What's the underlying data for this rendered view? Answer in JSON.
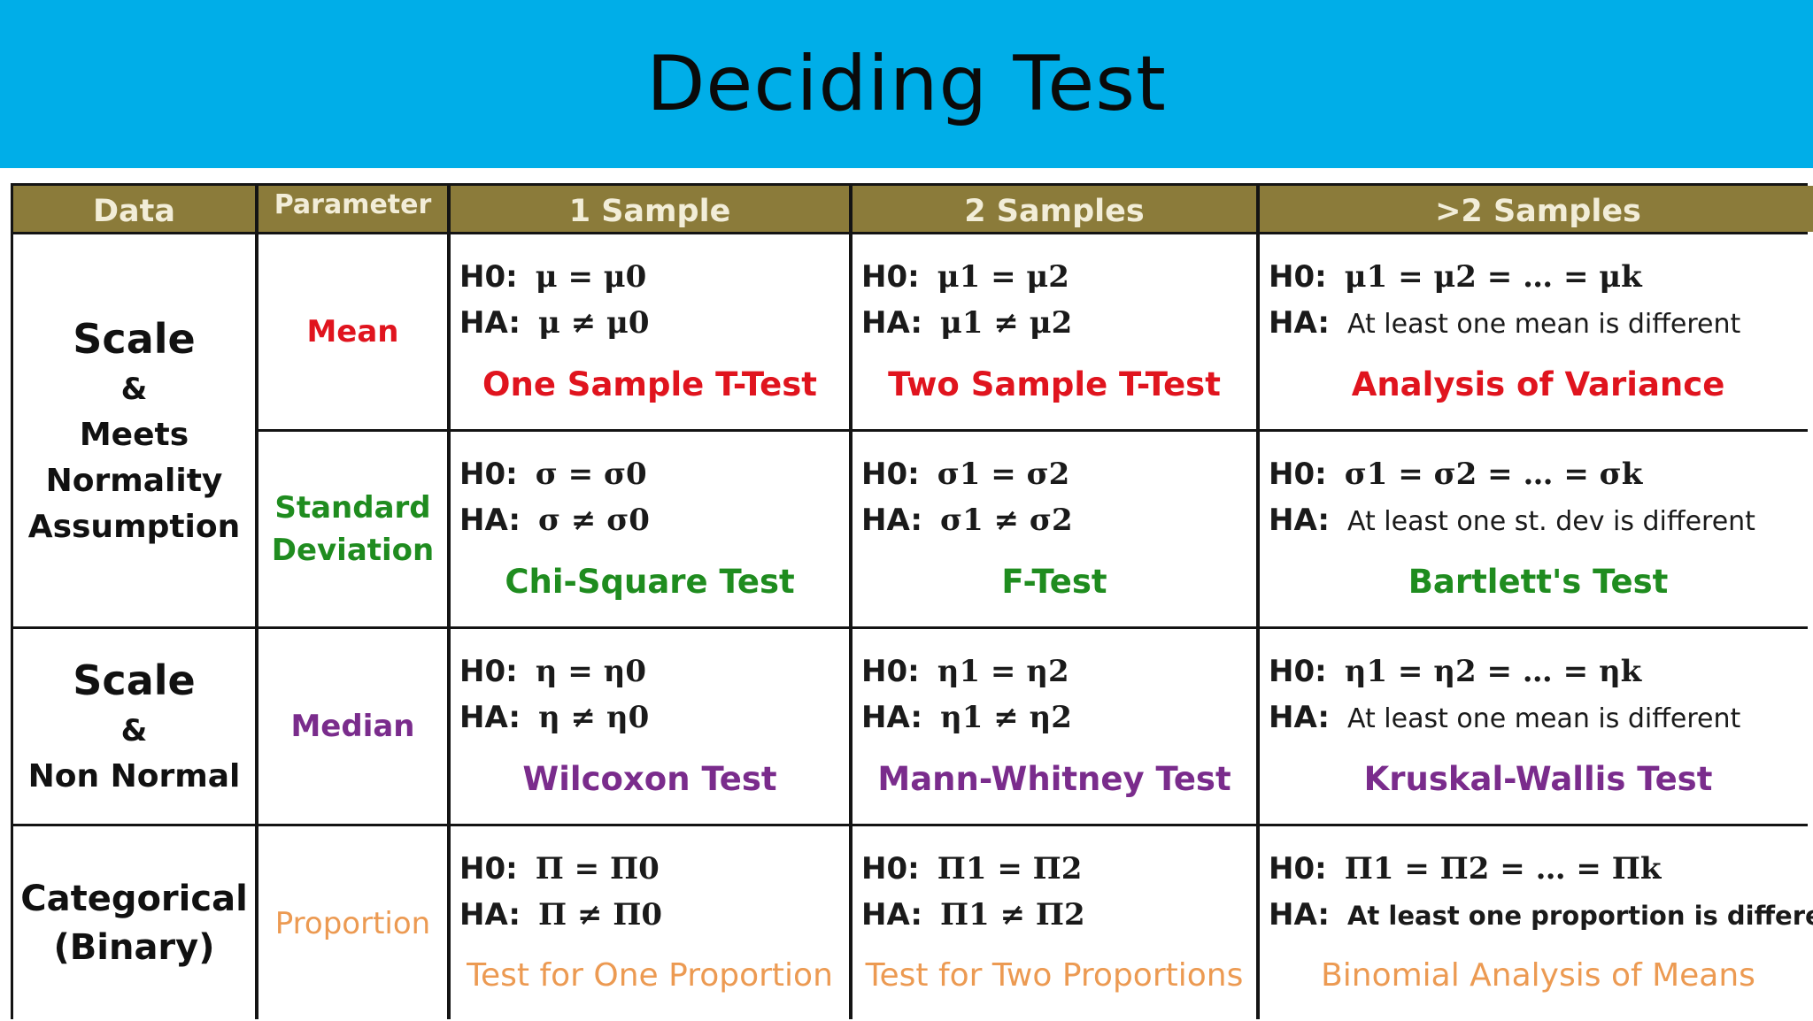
{
  "title": "Deciding Test",
  "headers": {
    "data": "Data",
    "parameter": "Parameter",
    "one_sample": "1 Sample",
    "two_samples": "2 Samples",
    "gt2_samples": ">2 Samples"
  },
  "data_groups": {
    "scale_normal": [
      "Scale",
      "&",
      "Meets",
      "Normality",
      "Assumption"
    ],
    "scale_nonnormal": [
      "Scale",
      "&",
      "Non Normal"
    ],
    "categorical": [
      "Categorical",
      "(Binary)"
    ]
  },
  "parameters": {
    "mean": "Mean",
    "std_dev": [
      "Standard",
      "Deviation"
    ],
    "median": "Median",
    "proportion": "Proportion"
  },
  "hyp_labels": {
    "h0": "H0:",
    "ha": "HA:"
  },
  "rows": {
    "mean": {
      "one": {
        "h0": "μ = μ0",
        "ha": "μ ≠ μ0",
        "test": "One Sample T-Test"
      },
      "two": {
        "h0": "μ1 = μ2",
        "ha": "μ1 ≠ μ2",
        "test": "Two Sample T-Test"
      },
      "many": {
        "h0": "μ1 = μ2 = … = μk",
        "ha": "At least one mean is different",
        "test": "Analysis of Variance"
      }
    },
    "std_dev": {
      "one": {
        "h0": "σ = σ0",
        "ha": "σ ≠ σ0",
        "test": "Chi-Square Test"
      },
      "two": {
        "h0": "σ1 = σ2",
        "ha": "σ1 ≠ σ2",
        "test": "F-Test"
      },
      "many": {
        "h0": "σ1 = σ2 = … = σk",
        "ha": "At least one st. dev is different",
        "test": "Bartlett's Test"
      }
    },
    "median": {
      "one": {
        "h0": "η = η0",
        "ha": "η ≠ η0",
        "test": "Wilcoxon Test"
      },
      "two": {
        "h0": "η1 = η2",
        "ha": "η1 ≠ η2",
        "test": "Mann-Whitney Test"
      },
      "many": {
        "h0": "η1 = η2 = … = ηk",
        "ha": "At least one mean is different",
        "test": "Kruskal-Wallis Test"
      }
    },
    "proportion": {
      "one": {
        "h0": "Π = Π0",
        "ha": "Π ≠ Π0",
        "test": "Test for One Proportion"
      },
      "two": {
        "h0": "Π1 = Π2",
        "ha": "Π1 ≠ Π2",
        "test": "Test for Two Proportions"
      },
      "many": {
        "h0": "Π1 = Π2 = … = Πk",
        "ha": "At least one proportion is different",
        "test": "Binomial Analysis of Means"
      }
    }
  },
  "colors": {
    "banner": "#00aee8",
    "header_bg": "#8b7b3a",
    "mean": "#e0141e",
    "std_dev": "#1f8c1f",
    "median": "#7a2c8c",
    "proportion": "#ec9a52"
  }
}
